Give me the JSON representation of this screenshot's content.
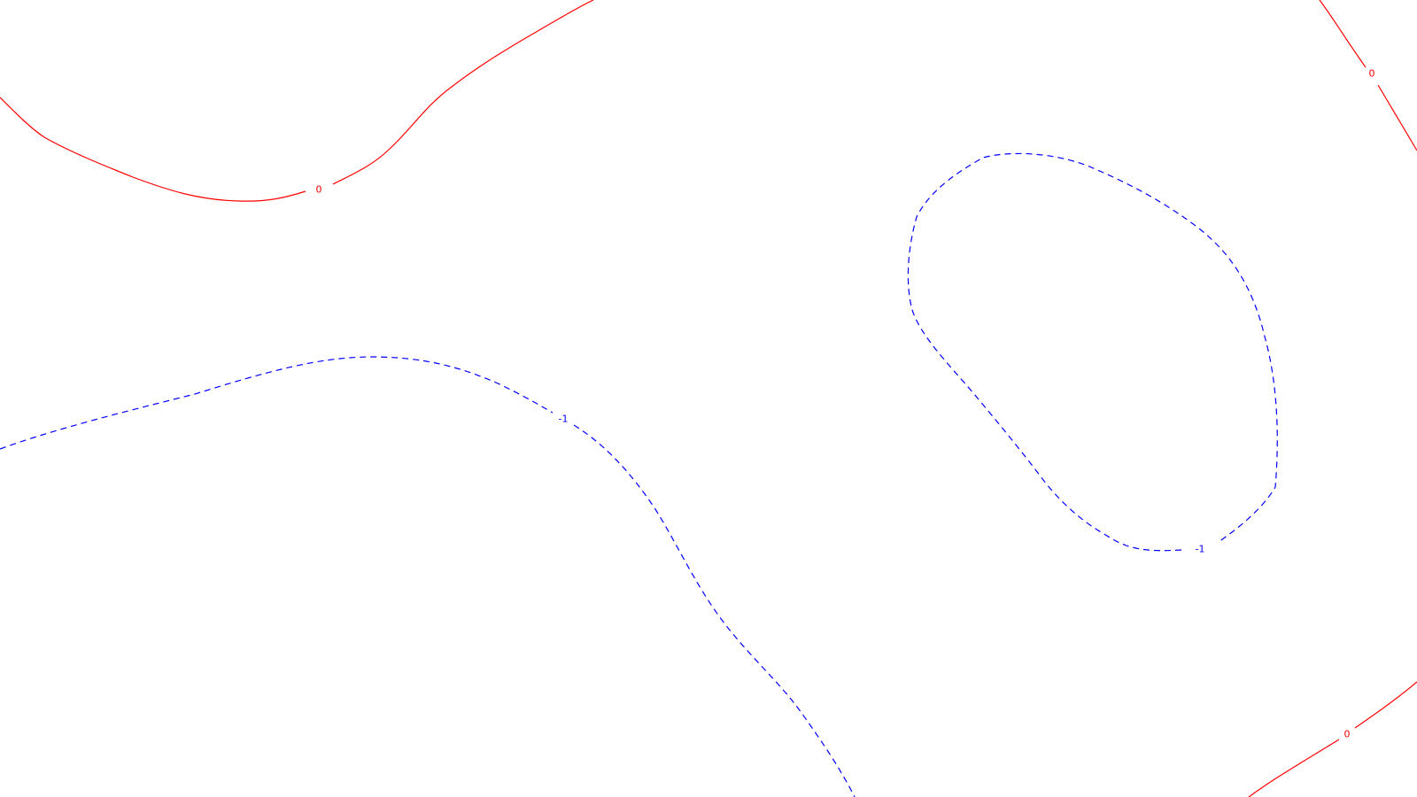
{
  "contours": [
    {
      "id": "zero-top-left",
      "level": "0",
      "label": "0",
      "color": "#ff0000",
      "dashed": false
    },
    {
      "id": "zero-top-right",
      "level": "0",
      "label": "0",
      "color": "#ff0000",
      "dashed": false
    },
    {
      "id": "zero-bottom-right",
      "level": "0",
      "label": "0",
      "color": "#ff0000",
      "dashed": false
    },
    {
      "id": "neg1-left",
      "level": "-1",
      "label": "-1",
      "color": "#0000ff",
      "dashed": true
    },
    {
      "id": "neg1-loop",
      "level": "-1",
      "label": "-1",
      "color": "#0000ff",
      "dashed": true
    }
  ]
}
